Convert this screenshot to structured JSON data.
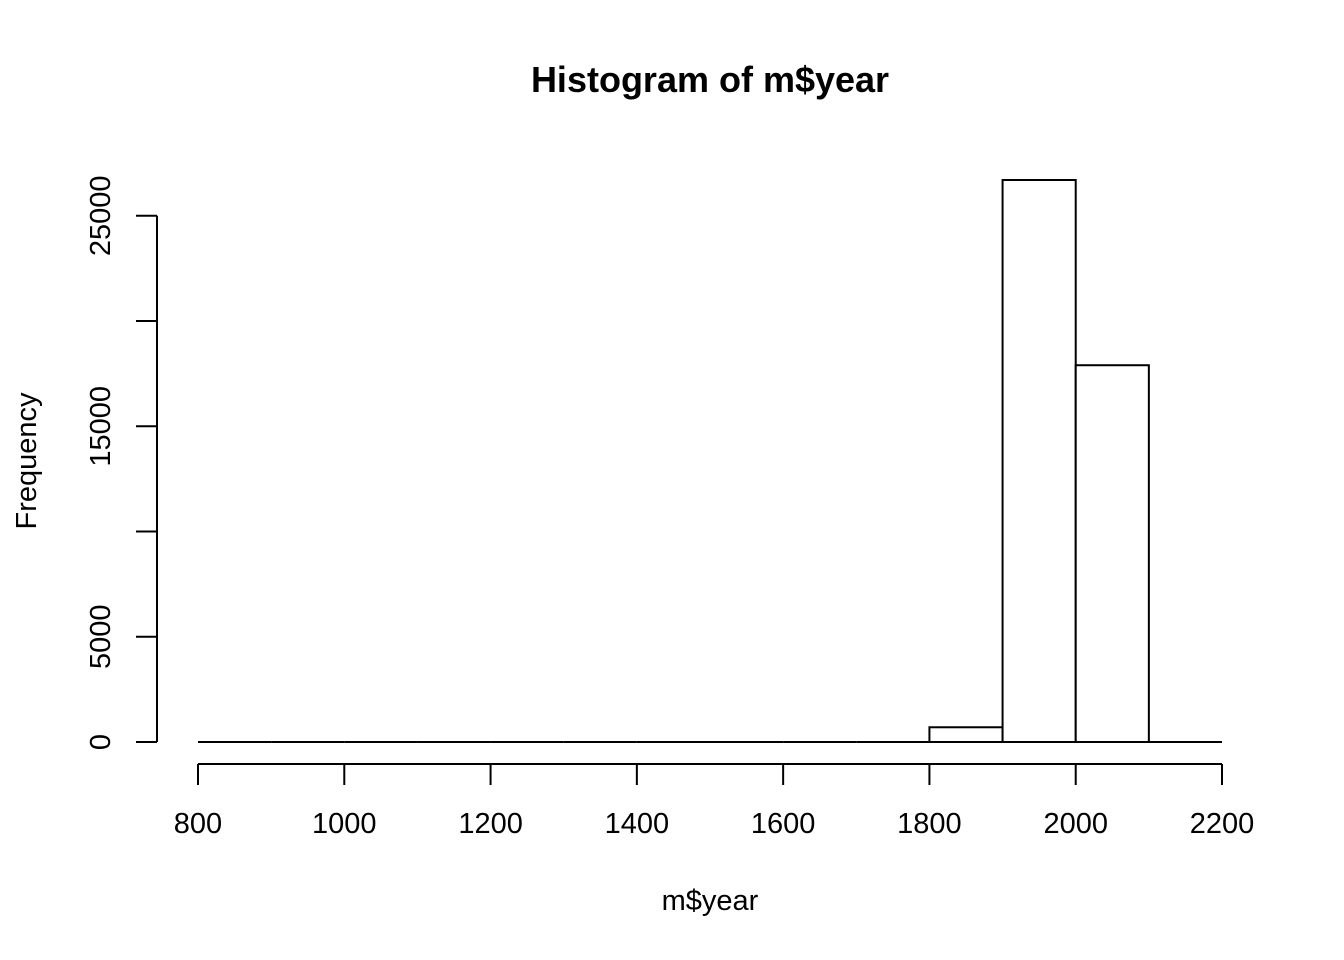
{
  "chart_data": {
    "type": "bar",
    "title": "Histogram of m$year",
    "xlabel": "m$year",
    "ylabel": "Frequency",
    "bins": [
      {
        "start": 800,
        "end": 900,
        "value": 0
      },
      {
        "start": 900,
        "end": 1000,
        "value": 0
      },
      {
        "start": 1000,
        "end": 1100,
        "value": 0
      },
      {
        "start": 1100,
        "end": 1200,
        "value": 0
      },
      {
        "start": 1200,
        "end": 1300,
        "value": 0
      },
      {
        "start": 1300,
        "end": 1400,
        "value": 0
      },
      {
        "start": 1400,
        "end": 1500,
        "value": 0
      },
      {
        "start": 1500,
        "end": 1600,
        "value": 0
      },
      {
        "start": 1600,
        "end": 1700,
        "value": 0
      },
      {
        "start": 1700,
        "end": 1800,
        "value": 40
      },
      {
        "start": 1800,
        "end": 1900,
        "value": 700
      },
      {
        "start": 1900,
        "end": 2000,
        "value": 26700
      },
      {
        "start": 2000,
        "end": 2100,
        "value": 17900
      },
      {
        "start": 2100,
        "end": 2200,
        "value": 0
      }
    ],
    "xlim": [
      800,
      2200
    ],
    "ylim": [
      0,
      26700
    ],
    "x_ticks": [
      800,
      1000,
      1200,
      1400,
      1600,
      1800,
      2000,
      2200
    ],
    "y_ticks": [
      0,
      5000,
      10000,
      15000,
      20000,
      25000
    ],
    "y_tick_labels": [
      "0",
      "5000",
      "",
      "15000",
      "",
      "25000"
    ],
    "grid": false,
    "bar_fill": "#ffffff",
    "bar_stroke": "#000000"
  }
}
